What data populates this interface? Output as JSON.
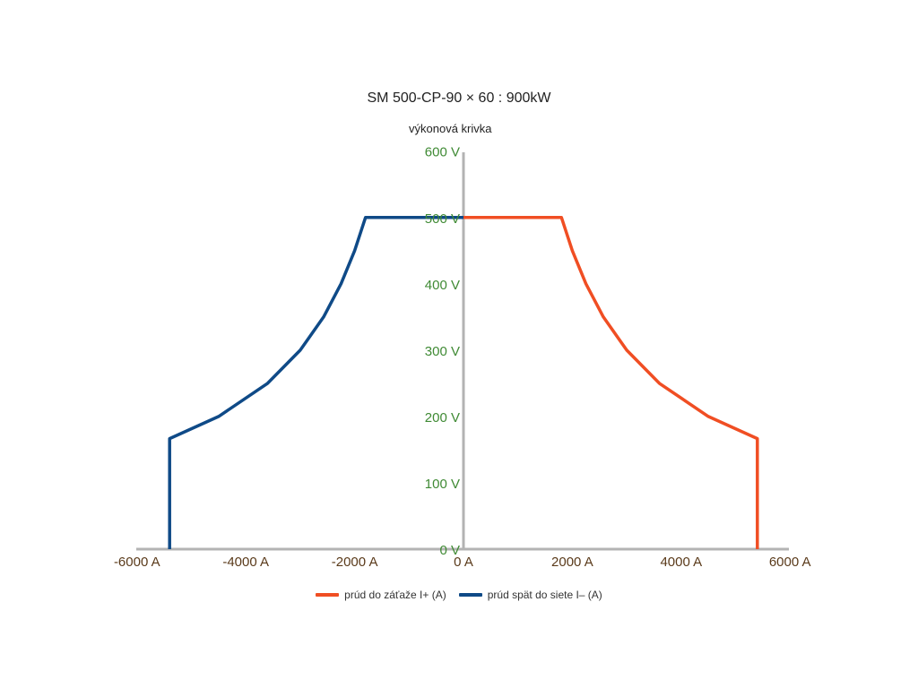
{
  "chart": {
    "title": "SM 500-CP-90 × 60 : 900kW",
    "subtitle": "výkonová krivka"
  },
  "chart_data": {
    "type": "line",
    "title": "SM 500-CP-90 × 60 : 900kW",
    "subtitle": "výkonová krivka",
    "x_ticks": [
      "-6000 A",
      "-4000 A",
      "-2000 A",
      "0 A",
      "2000 A",
      "4000 A",
      "6000 A"
    ],
    "y_ticks": [
      "0 V",
      "100 V",
      "200 V",
      "300 V",
      "400 V",
      "500 V",
      "600 V"
    ],
    "xlim": [
      -6000,
      6000
    ],
    "ylim": [
      0,
      600
    ],
    "colors": {
      "axis": "#b3b3b3",
      "x_tick_label": "#5a3a1a",
      "y_tick_label": "#3f8a34"
    },
    "series": [
      {
        "name": "prúd do záťaže I+ (A)",
        "color": "#f04e23",
        "points": [
          [
            0,
            500
          ],
          [
            1800,
            500
          ],
          [
            2000,
            450
          ],
          [
            2250,
            400
          ],
          [
            2570,
            350
          ],
          [
            3000,
            300
          ],
          [
            3600,
            250
          ],
          [
            4500,
            200
          ],
          [
            5400,
            166.7
          ],
          [
            5400,
            0
          ]
        ]
      },
      {
        "name": "prúd spät do siete I– (A)",
        "color": "#0f4a87",
        "points": [
          [
            0,
            500
          ],
          [
            -1800,
            500
          ],
          [
            -2000,
            450
          ],
          [
            -2250,
            400
          ],
          [
            -2570,
            350
          ],
          [
            -3000,
            300
          ],
          [
            -3600,
            250
          ],
          [
            -4500,
            200
          ],
          [
            -5400,
            166.7
          ],
          [
            -5400,
            0
          ]
        ]
      }
    ],
    "legend_position": "bottom",
    "grid": false
  }
}
